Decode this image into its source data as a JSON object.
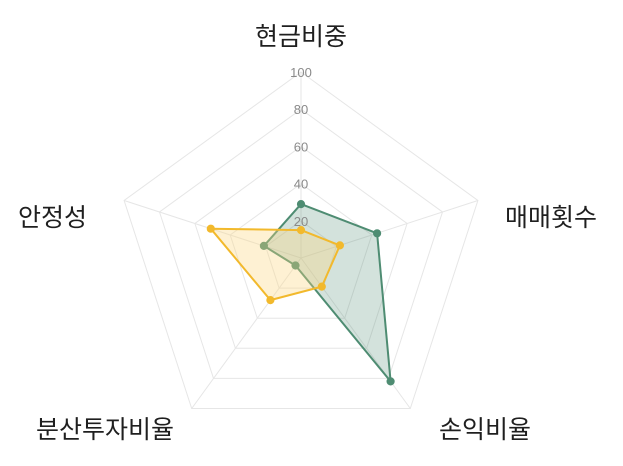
{
  "chart_data": {
    "type": "radar",
    "axes": [
      "현금비중",
      "매매횟수",
      "손익비율",
      "분산투자비율",
      "안정성"
    ],
    "r_ticks": [
      "20",
      "40",
      "60",
      "80",
      "100"
    ],
    "rlim": [
      0,
      100
    ],
    "grid": true,
    "legend": "none",
    "series": [
      {
        "color": "#4e8c72",
        "fill": "rgba(78,140,114,0.25)",
        "values": [
          29,
          43,
          82,
          5,
          21
        ]
      },
      {
        "color": "#f2b92c",
        "fill": "rgba(252,214,128,0.35)",
        "values": [
          15,
          22,
          19,
          28,
          51
        ]
      }
    ]
  }
}
